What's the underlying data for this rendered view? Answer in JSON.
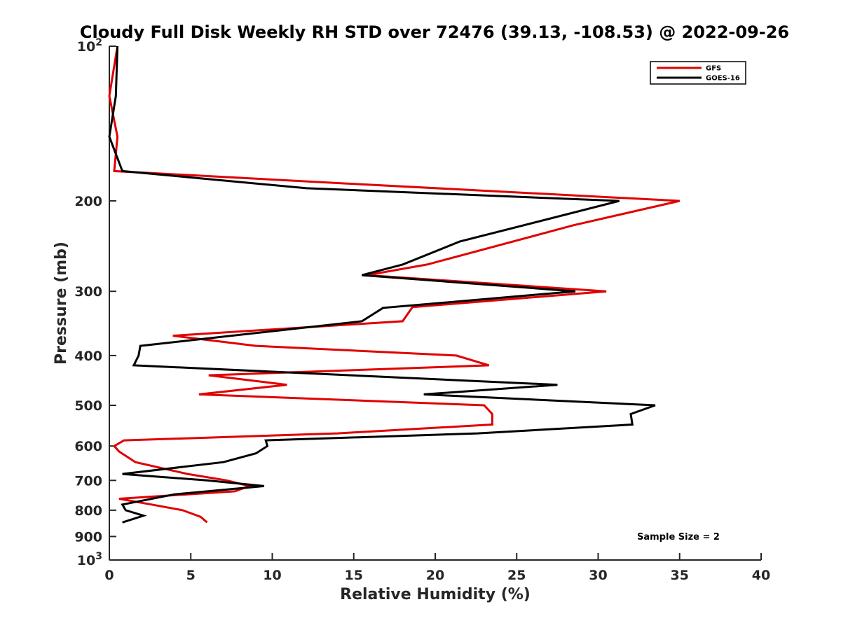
{
  "chart_data": {
    "type": "line",
    "title": "Cloudy Full Disk Weekly RH STD over 72476 (39.13, -108.53) @ 2022-09-26",
    "xlabel": "Relative Humidity (%)",
    "ylabel": "Pressure (mb)",
    "xlim": [
      0,
      40
    ],
    "ylim": [
      100,
      1000
    ],
    "y_scale": "log",
    "y_reversed": true,
    "x_ticks": [
      "0",
      "5",
      "10",
      "15",
      "20",
      "25",
      "30",
      "35",
      "40"
    ],
    "y_ticks": [
      {
        "value": 100,
        "base": "10",
        "exp": "2"
      },
      {
        "value": 200,
        "label": "200"
      },
      {
        "value": 300,
        "label": "300"
      },
      {
        "value": 400,
        "label": "400"
      },
      {
        "value": 500,
        "label": "500"
      },
      {
        "value": 600,
        "label": "600"
      },
      {
        "value": 700,
        "label": "700"
      },
      {
        "value": 800,
        "label": "800"
      },
      {
        "value": 900,
        "label": "900"
      },
      {
        "value": 1000,
        "base": "10",
        "exp": "3"
      }
    ],
    "grid": false,
    "legend_position": "top-right",
    "annotation": "Sample Size = 2",
    "series": [
      {
        "name": "GFS",
        "color": "#e00000",
        "points": [
          [
            0.5,
            100
          ],
          [
            0.0,
            125
          ],
          [
            0.5,
            150
          ],
          [
            0.3,
            175
          ],
          [
            14.5,
            185
          ],
          [
            35.0,
            200
          ],
          [
            28.5,
            223
          ],
          [
            19.5,
            266
          ],
          [
            15.8,
            279
          ],
          [
            30.5,
            300
          ],
          [
            18.6,
            322
          ],
          [
            18.0,
            343
          ],
          [
            3.9,
            366
          ],
          [
            9.0,
            383
          ],
          [
            21.3,
            400
          ],
          [
            23.3,
            418
          ],
          [
            6.1,
            437
          ],
          [
            10.9,
            456
          ],
          [
            5.5,
            476
          ],
          [
            23.0,
            500
          ],
          [
            23.5,
            520
          ],
          [
            23.5,
            545
          ],
          [
            14.0,
            567
          ],
          [
            0.9,
            585
          ],
          [
            0.3,
            600
          ],
          [
            0.6,
            615
          ],
          [
            1.6,
            645
          ],
          [
            4.8,
            680
          ],
          [
            7.2,
            700
          ],
          [
            8.6,
            718
          ],
          [
            7.7,
            735
          ],
          [
            0.6,
            760
          ],
          [
            2.6,
            780
          ],
          [
            4.5,
            800
          ],
          [
            5.6,
            824
          ],
          [
            6.0,
            845
          ]
        ]
      },
      {
        "name": "GOES-16",
        "color": "#000000",
        "points": [
          [
            0.5,
            100
          ],
          [
            0.4,
            125
          ],
          [
            0.0,
            150
          ],
          [
            0.8,
            175
          ],
          [
            12.1,
            189
          ],
          [
            31.3,
            200
          ],
          [
            21.5,
            240
          ],
          [
            18.0,
            266
          ],
          [
            15.5,
            279
          ],
          [
            28.6,
            300
          ],
          [
            16.8,
            323
          ],
          [
            15.5,
            343
          ],
          [
            1.9,
            383
          ],
          [
            1.8,
            400
          ],
          [
            1.5,
            418
          ],
          [
            27.5,
            456
          ],
          [
            19.3,
            476
          ],
          [
            33.5,
            500
          ],
          [
            32.0,
            520
          ],
          [
            32.1,
            545
          ],
          [
            22.6,
            567
          ],
          [
            9.6,
            585
          ],
          [
            9.7,
            600
          ],
          [
            9.0,
            620
          ],
          [
            7.0,
            645
          ],
          [
            0.8,
            680
          ],
          [
            6.0,
            700
          ],
          [
            9.5,
            718
          ],
          [
            4.0,
            745
          ],
          [
            0.8,
            780
          ],
          [
            1.0,
            800
          ],
          [
            2.1,
            820
          ],
          [
            0.8,
            845
          ]
        ]
      }
    ]
  }
}
